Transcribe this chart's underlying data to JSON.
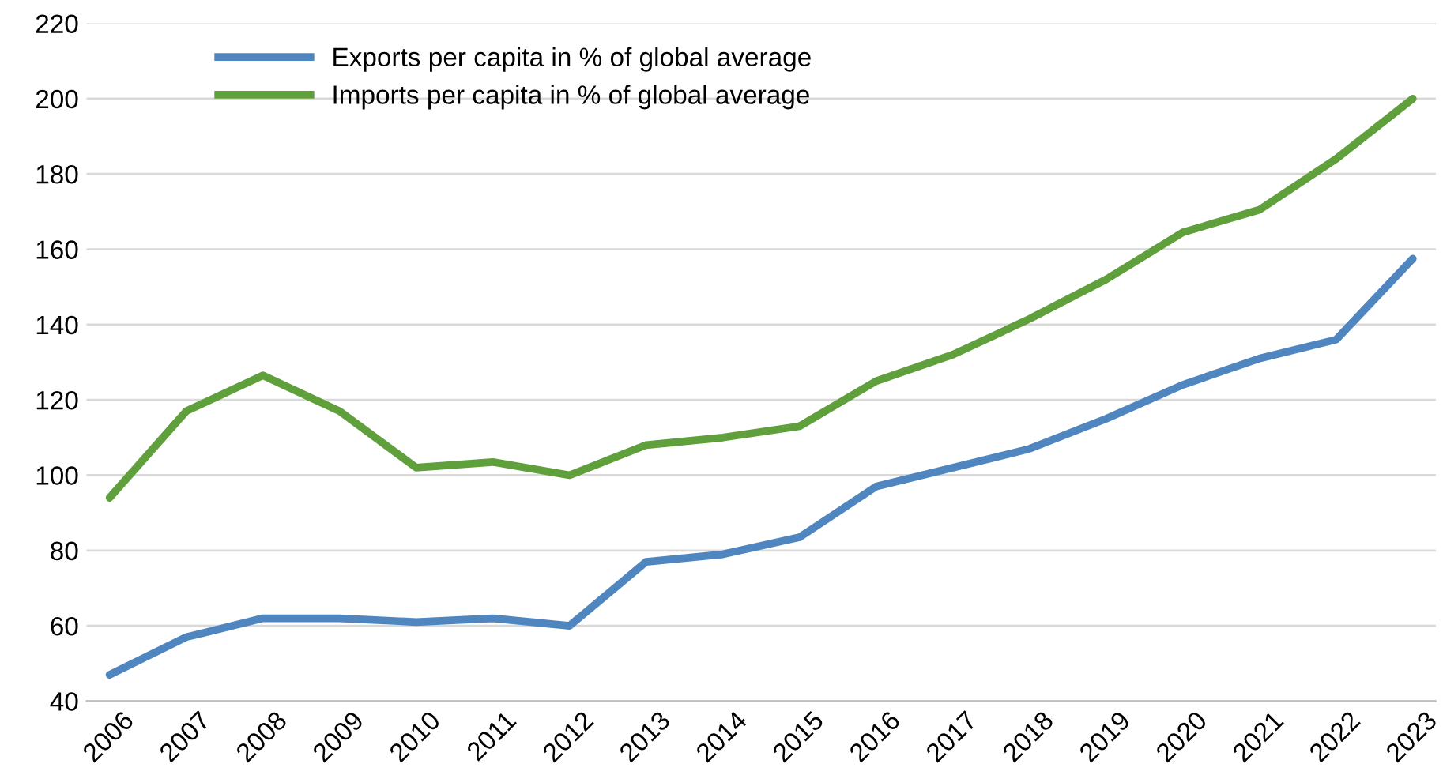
{
  "chart_data": {
    "type": "line",
    "categories": [
      "2006",
      "2007",
      "2008",
      "2009",
      "2010",
      "2011",
      "2012",
      "2013",
      "2014",
      "2015",
      "2016",
      "2017",
      "2018",
      "2019",
      "2020",
      "2021",
      "2022",
      "2023"
    ],
    "series": [
      {
        "name": "Exports per capita in % of global average",
        "color": "#4f86c0",
        "values": [
          47,
          57,
          62,
          62,
          61,
          62,
          60,
          77,
          79,
          83.5,
          97,
          102,
          107,
          115,
          124,
          131,
          136,
          157.5
        ]
      },
      {
        "name": "Imports per capita in % of global average",
        "color": "#60a03c",
        "values": [
          94,
          117,
          126.5,
          117,
          102,
          103.5,
          100,
          108,
          110,
          113,
          125,
          132,
          141.5,
          152,
          164.5,
          170.5,
          184,
          200
        ]
      }
    ],
    "ylim": [
      40,
      220
    ],
    "yticks": [
      40,
      60,
      80,
      100,
      120,
      140,
      160,
      180,
      200,
      220
    ],
    "grid": "y",
    "legend": "top left",
    "marker": "none",
    "line_style": "solid"
  }
}
